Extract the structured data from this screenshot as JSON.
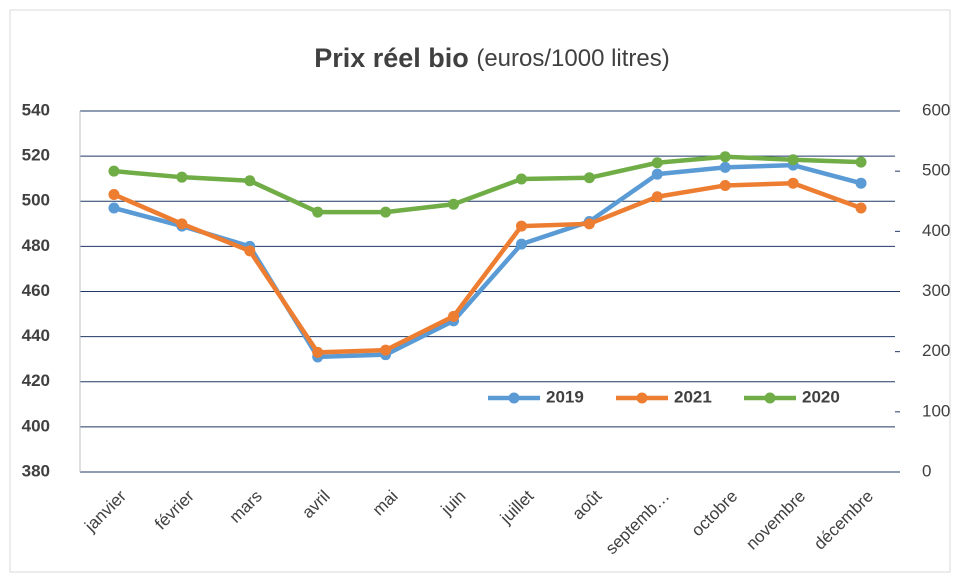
{
  "chart_data": {
    "type": "line",
    "title": "Prix réel bio",
    "subtitle": "(euros/1000 litres)",
    "categories": [
      "janvier",
      "février",
      "mars",
      "avril",
      "mai",
      "juin",
      "juillet",
      "août",
      "septemb…",
      "octobre",
      "novembre",
      "décembre"
    ],
    "series": [
      {
        "name": "2019",
        "color": "#5b9bd5",
        "values": [
          497,
          489,
          480,
          431,
          432,
          447,
          481,
          491,
          512,
          515,
          516,
          508
        ]
      },
      {
        "name": "2021",
        "color": "#ed7d31",
        "values": [
          503,
          490,
          478,
          433,
          434,
          449,
          489,
          490,
          502,
          507,
          508,
          497
        ]
      },
      {
        "name": "2020",
        "color": "#70ad47",
        "axis": "y2",
        "values": [
          500,
          490,
          484,
          432,
          432,
          445,
          487,
          489,
          514,
          524,
          519,
          515
        ]
      }
    ],
    "ylim": [
      380,
      540
    ],
    "yticks": [
      380,
      400,
      420,
      440,
      460,
      480,
      500,
      520,
      540
    ],
    "y2lim": [
      0,
      600
    ],
    "y2ticks": [
      0,
      100,
      200,
      300,
      400,
      500,
      600
    ],
    "grid": true,
    "legend": "bottom-right"
  }
}
